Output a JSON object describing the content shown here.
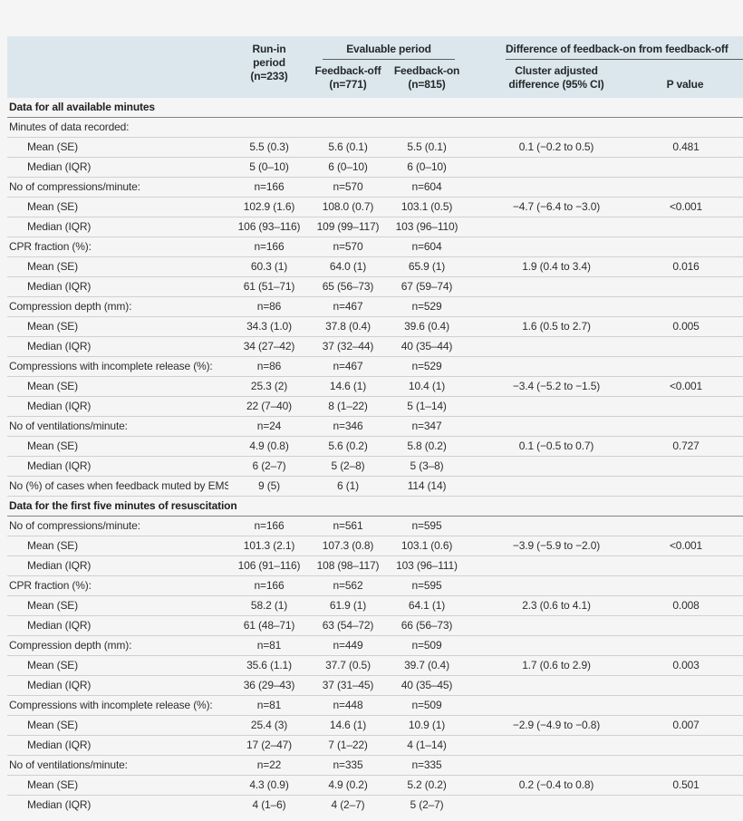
{
  "colors": {
    "page_bg": "#f5f5f6",
    "header_bg": "#dbe7ed",
    "text": "#2e2e2e",
    "row_line": "#cdd1d3",
    "section_line": "#7f8487",
    "spanner_line": "#5a5f63"
  },
  "table": {
    "header": {
      "runin_lines": [
        "Run-in",
        "period",
        "(n=233)"
      ],
      "spanner_evaluable": "Evaluable period",
      "spanner_difference": "Difference of feedback-on from feedback-off",
      "feedback_off_lines": [
        "Feedback-off",
        "(n=771)"
      ],
      "feedback_on_lines": [
        "Feedback-on",
        "(n=815)"
      ],
      "cluster_lines": [
        "Cluster adjusted",
        "difference (95% CI)"
      ],
      "p_value": "P value"
    },
    "rows": [
      {
        "type": "section",
        "label": "Data for all available minutes"
      },
      {
        "type": "category",
        "label": "Minutes of data recorded:",
        "cells": [
          "",
          "",
          "",
          "",
          ""
        ]
      },
      {
        "type": "data",
        "label": "Mean (SE)",
        "cells": [
          "5.5 (0.3)",
          "5.6 (0.1)",
          "5.5 (0.1)",
          "0.1 (−0.2 to 0.5)",
          "0.481"
        ]
      },
      {
        "type": "data",
        "label": "Median (IQR)",
        "cells": [
          "5 (0–10)",
          "6 (0–10)",
          "6 (0–10)",
          "",
          ""
        ]
      },
      {
        "type": "category",
        "label": "No of compressions/minute:",
        "cells": [
          "n=166",
          "n=570",
          "n=604",
          "",
          ""
        ]
      },
      {
        "type": "data",
        "label": "Mean (SE)",
        "cells": [
          "102.9 (1.6)",
          "108.0 (0.7)",
          "103.1 (0.5)",
          "−4.7 (−6.4 to −3.0)",
          "<0.001"
        ]
      },
      {
        "type": "data",
        "label": "Median (IQR)",
        "cells": [
          "106 (93–116)",
          "109 (99–117)",
          "103 (96–110)",
          "",
          ""
        ]
      },
      {
        "type": "category",
        "label": "CPR fraction (%):",
        "cells": [
          "n=166",
          "n=570",
          "n=604",
          "",
          ""
        ]
      },
      {
        "type": "data",
        "label": "Mean (SE)",
        "cells": [
          "60.3 (1)",
          "64.0 (1)",
          "65.9 (1)",
          "1.9 (0.4 to 3.4)",
          "0.016"
        ]
      },
      {
        "type": "data",
        "label": "Median (IQR)",
        "cells": [
          "61 (51–71)",
          "65 (56–73)",
          "67 (59–74)",
          "",
          ""
        ]
      },
      {
        "type": "category",
        "label": "Compression depth (mm):",
        "cells": [
          "n=86",
          "n=467",
          "n=529",
          "",
          ""
        ]
      },
      {
        "type": "data",
        "label": "Mean (SE)",
        "cells": [
          "34.3 (1.0)",
          "37.8 (0.4)",
          "39.6 (0.4)",
          "1.6 (0.5 to 2.7)",
          "0.005"
        ]
      },
      {
        "type": "data",
        "label": "Median (IQR)",
        "cells": [
          "34 (27–42)",
          "37 (32–44)",
          "40 (35–44)",
          "",
          ""
        ]
      },
      {
        "type": "category",
        "label": "Compressions with incomplete release (%):",
        "cells": [
          "n=86",
          "n=467",
          "n=529",
          "",
          ""
        ]
      },
      {
        "type": "data",
        "label": "Mean (SE)",
        "cells": [
          "25.3 (2)",
          "14.6 (1)",
          "10.4 (1)",
          "−3.4 (−5.2 to −1.5)",
          "<0.001"
        ]
      },
      {
        "type": "data",
        "label": "Median (IQR)",
        "cells": [
          "22 (7–40)",
          "8 (1–22)",
          "5 (1–14)",
          "",
          ""
        ]
      },
      {
        "type": "category",
        "label": "No of ventilations/minute:",
        "cells": [
          "n=24",
          "n=346",
          "n=347",
          "",
          ""
        ]
      },
      {
        "type": "data",
        "label": "Mean (SE)",
        "cells": [
          "4.9 (0.8)",
          "5.6 (0.2)",
          "5.8 (0.2)",
          "0.1 (−0.5 to 0.7)",
          "0.727"
        ]
      },
      {
        "type": "data",
        "label": "Median (IQR)",
        "cells": [
          "6 (2–7)",
          "5 (2–8)",
          "5 (3–8)",
          "",
          ""
        ]
      },
      {
        "type": "category",
        "label": "No (%) of cases when feedback muted by EMS",
        "cells": [
          "9 (5)",
          "6 (1)",
          "114 (14)",
          "",
          ""
        ]
      },
      {
        "type": "section",
        "label": "Data for the first five minutes of resuscitation"
      },
      {
        "type": "category",
        "label": "No of compressions/minute:",
        "cells": [
          "n=166",
          "n=561",
          "n=595",
          "",
          ""
        ]
      },
      {
        "type": "data",
        "label": "Mean (SE)",
        "cells": [
          "101.3 (2.1)",
          "107.3 (0.8)",
          "103.1 (0.6)",
          "−3.9 (−5.9 to −2.0)",
          "<0.001"
        ]
      },
      {
        "type": "data",
        "label": "Median (IQR)",
        "cells": [
          "106 (91–116)",
          "108 (98–117)",
          "103 (96–111)",
          "",
          ""
        ]
      },
      {
        "type": "category",
        "label": "CPR fraction (%):",
        "cells": [
          "n=166",
          "n=562",
          "n=595",
          "",
          ""
        ]
      },
      {
        "type": "data",
        "label": "Mean (SE)",
        "cells": [
          "58.2 (1)",
          "61.9 (1)",
          "64.1 (1)",
          "2.3 (0.6 to 4.1)",
          "0.008"
        ]
      },
      {
        "type": "data",
        "label": "Median (IQR)",
        "cells": [
          "61 (48–71)",
          "63 (54–72)",
          "66 (56–73)",
          "",
          ""
        ]
      },
      {
        "type": "category",
        "label": "Compression depth (mm):",
        "cells": [
          "n=81",
          "n=449",
          "n=509",
          "",
          ""
        ]
      },
      {
        "type": "data",
        "label": "Mean (SE)",
        "cells": [
          "35.6 (1.1)",
          "37.7 (0.5)",
          "39.7 (0.4)",
          "1.7 (0.6 to 2.9)",
          "0.003"
        ]
      },
      {
        "type": "data",
        "label": "Median (IQR)",
        "cells": [
          "36 (29–43)",
          "37 (31–45)",
          "40 (35–45)",
          "",
          ""
        ]
      },
      {
        "type": "category",
        "label": "Compressions with incomplete release (%):",
        "cells": [
          "n=81",
          "n=448",
          "n=509",
          "",
          ""
        ]
      },
      {
        "type": "data",
        "label": "Mean (SE)",
        "cells": [
          "25.4 (3)",
          "14.6 (1)",
          "10.9 (1)",
          "−2.9 (−4.9 to −0.8)",
          "0.007"
        ]
      },
      {
        "type": "data",
        "label": "Median (IQR)",
        "cells": [
          "17 (2–47)",
          "7 (1–22)",
          "4 (1–14)",
          "",
          ""
        ]
      },
      {
        "type": "category",
        "label": "No of ventilations/minute:",
        "cells": [
          "n=22",
          "n=335",
          "n=335",
          "",
          ""
        ]
      },
      {
        "type": "data",
        "label": "Mean (SE)",
        "cells": [
          "4.3 (0.9)",
          "4.9 (0.2)",
          "5.2 (0.2)",
          "0.2 (−0.4 to 0.8)",
          "0.501"
        ]
      },
      {
        "type": "data",
        "label": "Median (IQR)",
        "cells": [
          "4 (1–6)",
          "4 (2–7)",
          "5 (2–7)",
          "",
          ""
        ]
      }
    ]
  }
}
